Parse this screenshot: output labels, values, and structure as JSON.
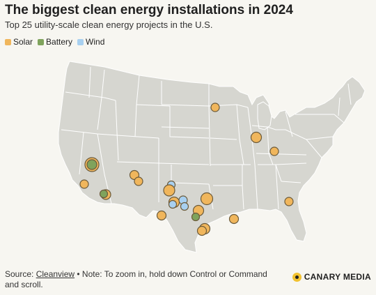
{
  "header": {
    "title": "The biggest clean energy installations in 2024",
    "subtitle": "Top 25 utility-scale clean energy projects in the U.S."
  },
  "legend": [
    {
      "label": "Solar",
      "color": "#f0b65c"
    },
    {
      "label": "Battery",
      "color": "#7fa35c"
    },
    {
      "label": "Wind",
      "color": "#a8d0f0"
    }
  ],
  "map": {
    "land_color": "#d6d6d0",
    "border_color": "#ffffff",
    "marker_outline": "#6b5a3a",
    "markers": [
      {
        "type": "Solar",
        "location": "Minnesota"
      },
      {
        "type": "Solar",
        "location": "Indiana"
      },
      {
        "type": "Solar",
        "location": "Ohio"
      },
      {
        "type": "Solar",
        "location": "Nevada"
      },
      {
        "type": "Battery",
        "location": "Nevada"
      },
      {
        "type": "Solar",
        "location": "California"
      },
      {
        "type": "Solar",
        "location": "Arizona"
      },
      {
        "type": "Battery",
        "location": "Arizona"
      },
      {
        "type": "Solar",
        "location": "New Mexico"
      },
      {
        "type": "Solar",
        "location": "New Mexico"
      },
      {
        "type": "Wind",
        "location": "Texas"
      },
      {
        "type": "Solar",
        "location": "Texas"
      },
      {
        "type": "Solar",
        "location": "Texas"
      },
      {
        "type": "Wind",
        "location": "Texas"
      },
      {
        "type": "Wind",
        "location": "Texas"
      },
      {
        "type": "Wind",
        "location": "Texas"
      },
      {
        "type": "Solar",
        "location": "Texas"
      },
      {
        "type": "Solar",
        "location": "Texas"
      },
      {
        "type": "Battery",
        "location": "Texas"
      },
      {
        "type": "Solar",
        "location": "Texas"
      },
      {
        "type": "Solar",
        "location": "Texas"
      },
      {
        "type": "Solar",
        "location": "Texas"
      },
      {
        "type": "Solar",
        "location": "Louisiana"
      },
      {
        "type": "Solar",
        "location": "Mississippi"
      },
      {
        "type": "Solar",
        "location": "Georgia"
      }
    ]
  },
  "footer": {
    "source_prefix": "Source: ",
    "source_link": "Cleanview",
    "note": " • Note: To zoom in, hold down Control or Command and scroll."
  },
  "brand": {
    "name": "CANARY MEDIA"
  }
}
